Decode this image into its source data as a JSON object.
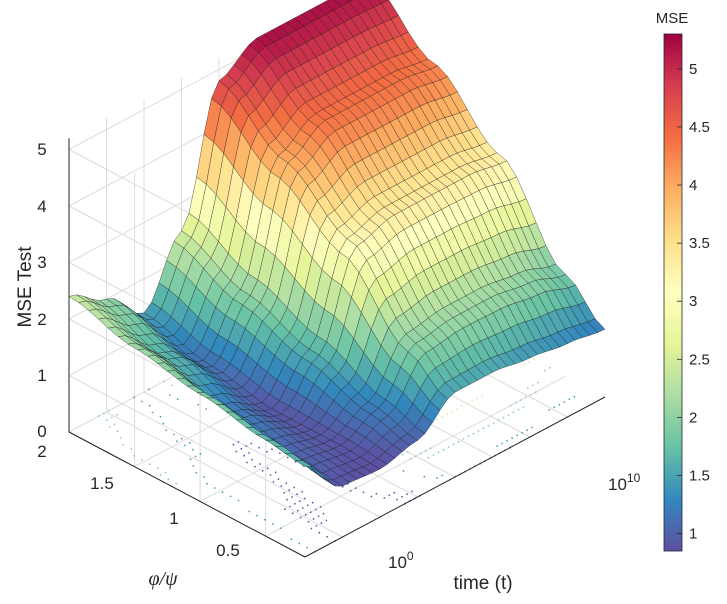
{
  "chart_data": {
    "type": "surface3d",
    "zlabel": "MSE Test",
    "xlabel": "time (t)",
    "ylabel": "φ/ψ",
    "colorbar_title": "MSE",
    "z_ticks": [
      "0",
      "1",
      "2",
      "3",
      "4",
      "5"
    ],
    "y_ticks": [
      "0.5",
      "1",
      "1.5",
      "2"
    ],
    "x_ticks": [
      {
        "base": "10",
        "exp": "0",
        "value": 1
      },
      {
        "base": "10",
        "exp": "10",
        "value": 10000000000
      }
    ],
    "colorbar_ticks": [
      "1",
      "1.5",
      "2",
      "2.5",
      "3",
      "3.5",
      "4",
      "4.5",
      "5"
    ],
    "colorbar_range": [
      0.85,
      5.3
    ],
    "zlim": [
      0,
      5.2
    ],
    "ylim": [
      0.2,
      2.0
    ],
    "xlim_log10": [
      -4,
      12
    ],
    "colormap": [
      "#5e4fa2",
      "#3288bd",
      "#66c2a5",
      "#abdda4",
      "#e6f598",
      "#ffffbf",
      "#fee08b",
      "#fdae61",
      "#f46d43",
      "#d53e4f",
      "#9e0142"
    ],
    "surface_description": "MSE vs time (log scale) and phi/psi; valley near 0.9 at early time and low phi/psi, peak near 5.2 at late time and high phi/psi",
    "sample_grid": {
      "log10_t": [
        -4,
        -2,
        0,
        2,
        4,
        6,
        8,
        10,
        12
      ],
      "phi_psi": [
        2.0,
        1.5,
        1.0,
        0.5,
        0.2
      ],
      "mse": [
        [
          2.4,
          2.0,
          1.4,
          2.5,
          4.8,
          5.2,
          5.2,
          5.2,
          5.2
        ],
        [
          2.1,
          1.6,
          1.1,
          2.0,
          4.0,
          4.4,
          4.4,
          4.4,
          4.3
        ],
        [
          1.9,
          1.2,
          0.9,
          1.6,
          3.2,
          3.4,
          3.4,
          3.4,
          3.3
        ],
        [
          1.7,
          1.0,
          0.9,
          1.2,
          2.0,
          2.1,
          2.1,
          2.0,
          1.8
        ],
        [
          1.6,
          0.9,
          0.85,
          1.0,
          1.5,
          1.5,
          1.4,
          1.3,
          1.2
        ]
      ]
    }
  }
}
